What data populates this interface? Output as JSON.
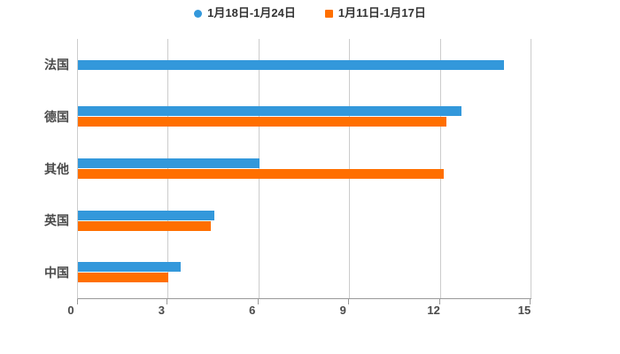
{
  "legend": {
    "items": [
      {
        "label": "1月18日-1月24日",
        "marker": "circle",
        "color": "#3398DB"
      },
      {
        "label": "1月11日-1月17日",
        "marker": "square",
        "color": "#FF6F00"
      }
    ]
  },
  "chart_data": {
    "type": "bar",
    "orientation": "horizontal",
    "title": "",
    "categories": [
      "法国",
      "德国",
      "其他",
      "英国",
      "中国"
    ],
    "series": [
      {
        "name": "1月18日-1月24日",
        "color": "#3398DB",
        "marker": "circle",
        "values": [
          14.1,
          12.7,
          6.0,
          4.5,
          3.4
        ]
      },
      {
        "name": "1月11日-1月17日",
        "color": "#FF6F00",
        "marker": "square",
        "values": [
          null,
          12.2,
          12.1,
          4.4,
          3.0
        ]
      }
    ],
    "x_ticks": [
      0,
      3,
      6,
      9,
      12,
      15
    ],
    "xlim": [
      0,
      15
    ],
    "grid": true,
    "legend_position": "top"
  },
  "colors": {
    "background": "#FFFFFF",
    "grid": "#CCCCCC",
    "x_axis_line": "#999999",
    "y_axis_line": "#CCCCCC",
    "tick_label": "#4A4A4A",
    "category_label": "#4A4A4A",
    "legend_text": "#333333"
  }
}
